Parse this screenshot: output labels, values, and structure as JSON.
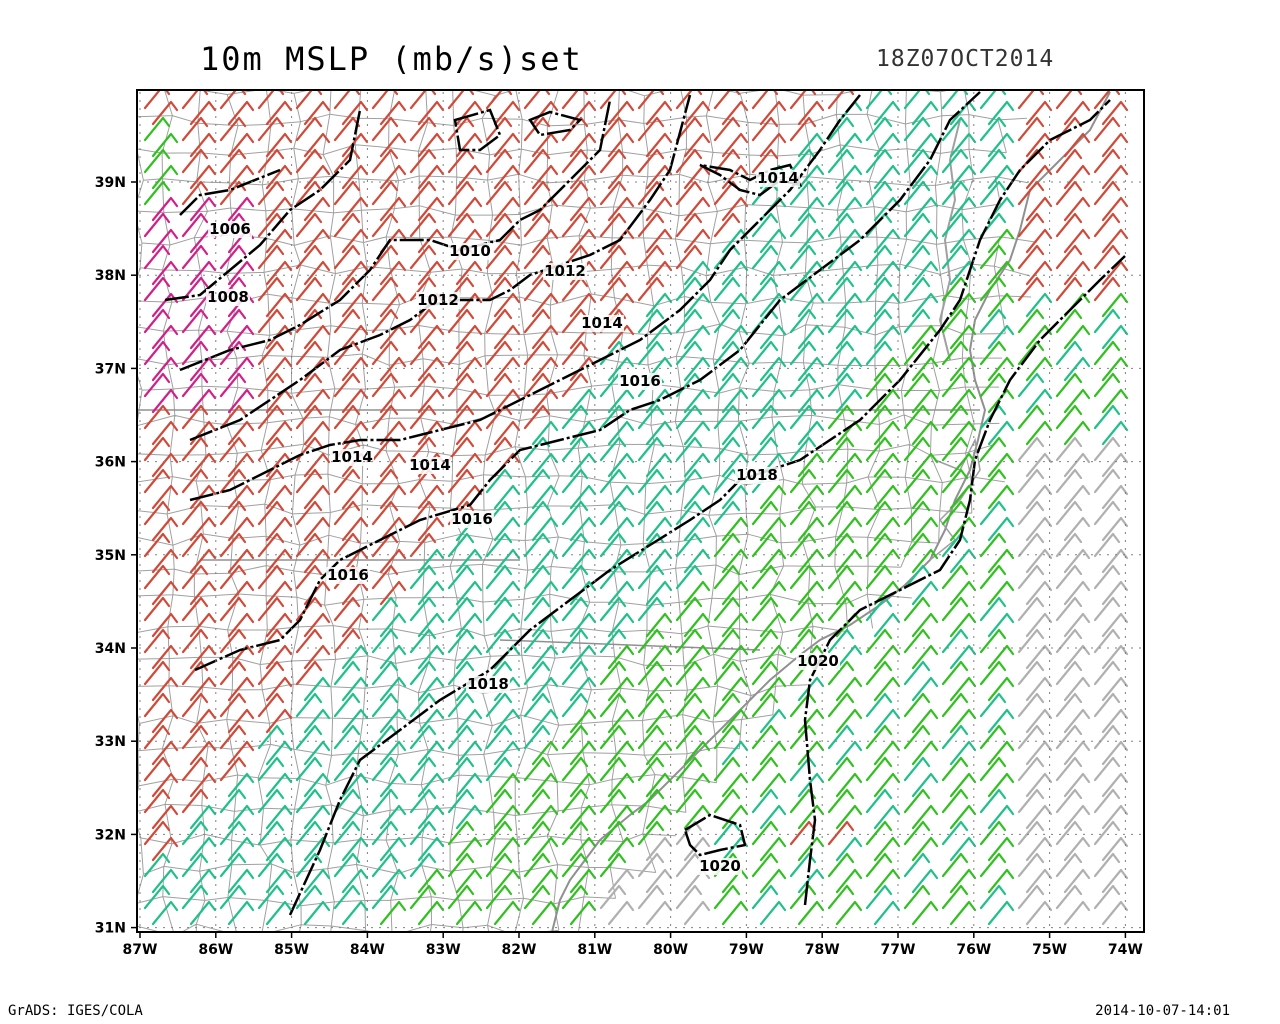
{
  "header": {
    "title": "10m MSLP (mb/s)set",
    "valid_time": "18Z07OCT2014"
  },
  "footer": {
    "credit": "GrADS: IGES/COLA",
    "generated": "2014-10-07-14:01"
  },
  "axes": {
    "lon_labels": [
      "87W",
      "86W",
      "85W",
      "84W",
      "83W",
      "82W",
      "81W",
      "80W",
      "79W",
      "78W",
      "77W",
      "76W",
      "75W",
      "74W"
    ],
    "lat_labels": [
      "39N",
      "38N",
      "37N",
      "36N",
      "35N",
      "34N",
      "33N",
      "32N",
      "31N"
    ]
  },
  "isobar_labels": [
    "1006",
    "1008",
    "1010",
    "1012",
    "1012",
    "1014",
    "1014",
    "1014",
    "1014",
    "1016",
    "1016",
    "1016",
    "1018",
    "1018",
    "1020",
    "1020",
    "1014"
  ],
  "colors": {
    "isobar": "#000000",
    "county_lines": "#a0a0a0",
    "barb_red": "#d04a3a",
    "barb_teal": "#20c08a",
    "barb_green": "#30c020",
    "barb_magenta": "#d0208a",
    "barb_orange": "#e8a030",
    "barb_gray": "#b0b0b0"
  }
}
